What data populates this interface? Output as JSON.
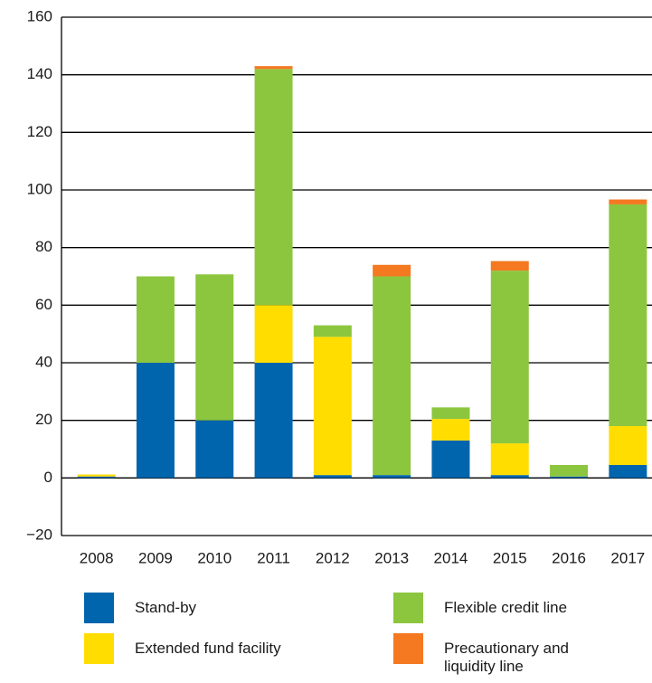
{
  "chart_data": {
    "type": "stacked_bar",
    "categories": [
      "2008",
      "2009",
      "2010",
      "2011",
      "2012",
      "2013",
      "2014",
      "2015",
      "2016",
      "2017"
    ],
    "series": [
      {
        "name": "Stand-by",
        "color": "#0065ad",
        "values": [
          0.5,
          40,
          20,
          40,
          1,
          1,
          13,
          1,
          0.5,
          4.5
        ]
      },
      {
        "name": "Extended fund facility",
        "color": "#ffdd00",
        "values": [
          0.7,
          0,
          0,
          20,
          48,
          0,
          7.5,
          11,
          0,
          13.5
        ]
      },
      {
        "name": "Flexible credit line",
        "color": "#8cc63f",
        "values": [
          0,
          30,
          50.7,
          82,
          4,
          69,
          4,
          60,
          4,
          77
        ]
      },
      {
        "name": "Precautionary and liquidity line",
        "color": "#f47920",
        "values": [
          0,
          0,
          0,
          1,
          0,
          4,
          0,
          3.3,
          0,
          1.7
        ]
      }
    ],
    "ylim": [
      -20,
      160
    ],
    "yticks": [
      {
        "value": -20,
        "label": "−20"
      },
      0,
      20,
      40,
      60,
      80,
      100,
      120,
      140,
      160
    ],
    "grid": true
  }
}
